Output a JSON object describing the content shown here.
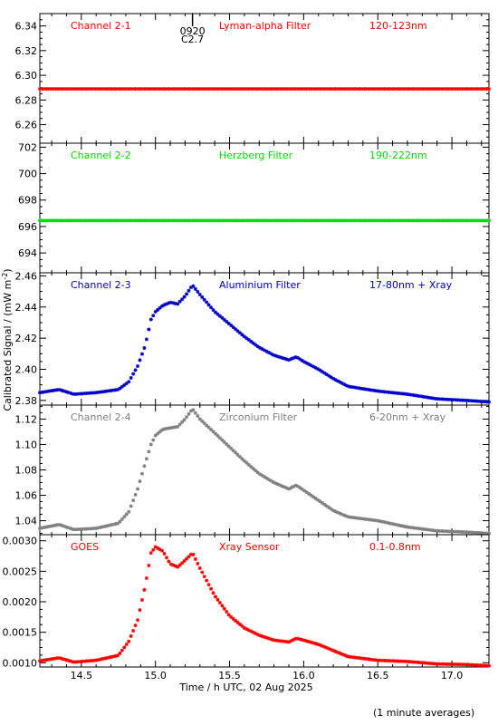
{
  "chart_data": [
    {
      "type": "scatter",
      "labels": [
        "Channel 2-1",
        "Lyman-alpha Filter",
        "120-123nm"
      ],
      "color": "#ff0000",
      "ylim": [
        6.245,
        6.35
      ],
      "yticks": [
        6.26,
        6.28,
        6.3,
        6.32,
        6.34
      ],
      "ytick_labels": [
        "6.26",
        "6.28",
        "6.30",
        "6.32",
        "6.34"
      ],
      "marker": {
        "x": 15.25,
        "labels": [
          "0920",
          "C2.7"
        ]
      },
      "series": [
        {
          "x": [
            14.22,
            17.25
          ],
          "y": [
            6.289,
            6.289
          ]
        }
      ]
    },
    {
      "type": "scatter",
      "labels": [
        "Channel 2-2",
        "Herzberg Filter",
        "190-222nm"
      ],
      "color": "#00dd00",
      "ylim": [
        692.5,
        702.3
      ],
      "yticks": [
        694,
        696,
        698,
        700,
        702
      ],
      "ytick_labels": [
        "694",
        "696",
        "698",
        "700",
        "702"
      ],
      "series": [
        {
          "x": [
            14.22,
            17.25
          ],
          "y": [
            696.45,
            696.45
          ]
        }
      ]
    },
    {
      "type": "scatter",
      "labels": [
        "Channel 2-3",
        "Aluminium Filter",
        "17-80nm + Xray"
      ],
      "color": "#0000cc",
      "ylim": [
        2.377,
        2.462
      ],
      "yticks": [
        2.38,
        2.4,
        2.42,
        2.44,
        2.46
      ],
      "ytick_labels": [
        "2.38",
        "2.40",
        "2.42",
        "2.44",
        "2.46"
      ],
      "series": [
        {
          "x": [
            14.22,
            14.35,
            14.45,
            14.6,
            14.75,
            14.82,
            14.88,
            14.93,
            14.97,
            15.0,
            15.05,
            15.1,
            15.15,
            15.2,
            15.25,
            15.3,
            15.4,
            15.5,
            15.6,
            15.7,
            15.8,
            15.9,
            15.95,
            16.0,
            16.1,
            16.2,
            16.3,
            16.5,
            16.7,
            16.9,
            17.1,
            17.25
          ],
          "y": [
            2.385,
            2.387,
            2.384,
            2.385,
            2.387,
            2.392,
            2.402,
            2.415,
            2.432,
            2.437,
            2.441,
            2.443,
            2.442,
            2.447,
            2.454,
            2.448,
            2.437,
            2.429,
            2.421,
            2.414,
            2.409,
            2.406,
            2.408,
            2.405,
            2.4,
            2.394,
            2.389,
            2.386,
            2.384,
            2.381,
            2.38,
            2.379
          ]
        }
      ]
    },
    {
      "type": "scatter",
      "labels": [
        "Channel 2-4",
        "Zirconium Filter",
        "6-20nm + Xray"
      ],
      "color": "#808080",
      "ylim": [
        1.029,
        1.131
      ],
      "yticks": [
        1.04,
        1.06,
        1.08,
        1.1,
        1.12
      ],
      "ytick_labels": [
        "1.04",
        "1.06",
        "1.08",
        "1.10",
        "1.12"
      ],
      "series": [
        {
          "x": [
            14.22,
            14.35,
            14.45,
            14.6,
            14.75,
            14.82,
            14.88,
            14.93,
            14.97,
            15.0,
            15.05,
            15.1,
            15.15,
            15.2,
            15.25,
            15.3,
            15.4,
            15.5,
            15.6,
            15.7,
            15.8,
            15.9,
            15.95,
            16.0,
            16.1,
            16.2,
            16.3,
            16.5,
            16.7,
            16.9,
            17.1,
            17.25
          ],
          "y": [
            1.034,
            1.037,
            1.033,
            1.034,
            1.038,
            1.047,
            1.065,
            1.085,
            1.1,
            1.107,
            1.112,
            1.113,
            1.114,
            1.12,
            1.128,
            1.12,
            1.109,
            1.098,
            1.087,
            1.077,
            1.07,
            1.065,
            1.068,
            1.064,
            1.056,
            1.048,
            1.043,
            1.04,
            1.035,
            1.032,
            1.031,
            1.03
          ]
        }
      ]
    },
    {
      "type": "scatter",
      "labels": [
        "GOES",
        "Xray Sensor",
        "0.1-0.8nm"
      ],
      "color": "#ff0000",
      "ylim": [
        0.00093,
        0.0031
      ],
      "yticks": [
        0.001,
        0.0015,
        0.002,
        0.0025,
        0.003
      ],
      "ytick_labels": [
        "0.0010",
        "0.0015",
        "0.0020",
        "0.0025",
        "0.0030"
      ],
      "xlabel": "Time / h UTC, 02 Aug 2025",
      "xlim": [
        14.22,
        17.25
      ],
      "xticks": [
        14.5,
        15.0,
        15.5,
        16.0,
        16.5,
        17.0
      ],
      "xtick_labels": [
        "14.5",
        "15.0",
        "15.5",
        "16.0",
        "16.5",
        "17.0"
      ],
      "series": [
        {
          "x": [
            14.22,
            14.35,
            14.45,
            14.6,
            14.75,
            14.82,
            14.88,
            14.93,
            14.97,
            15.0,
            15.05,
            15.1,
            15.15,
            15.2,
            15.25,
            15.3,
            15.4,
            15.5,
            15.6,
            15.7,
            15.8,
            15.9,
            15.95,
            16.0,
            16.1,
            16.2,
            16.3,
            16.5,
            16.7,
            16.9,
            17.1,
            17.25
          ],
          "y": [
            0.00103,
            0.00108,
            0.00101,
            0.00104,
            0.00112,
            0.00135,
            0.0017,
            0.00225,
            0.0028,
            0.0029,
            0.00283,
            0.00262,
            0.00257,
            0.00268,
            0.0028,
            0.00255,
            0.0021,
            0.00177,
            0.00157,
            0.00145,
            0.00137,
            0.00134,
            0.0014,
            0.00137,
            0.0013,
            0.0012,
            0.0011,
            0.00104,
            0.00102,
            0.00098,
            0.00097,
            0.00095
          ]
        }
      ]
    }
  ],
  "ylabel": "Calibrated Signal / (mW m",
  "ylabel_sup": "-2",
  "ylabel_close": ")",
  "footnote": "(1 minute averages)"
}
